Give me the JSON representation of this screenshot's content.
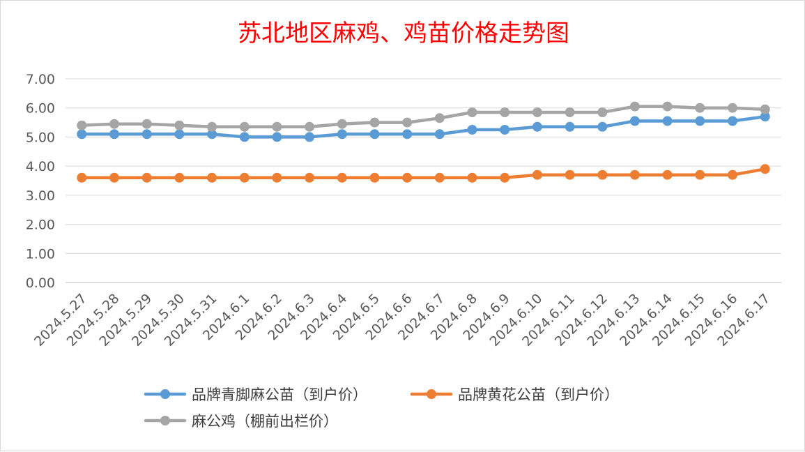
{
  "chart_data": {
    "type": "line",
    "title": "苏北地区麻鸡、鸡苗价格走势图",
    "xlabel": "",
    "ylabel": "",
    "ylim": [
      0,
      7
    ],
    "y_ticks": [
      "0.00",
      "1.00",
      "2.00",
      "3.00",
      "4.00",
      "5.00",
      "6.00",
      "7.00"
    ],
    "grid": true,
    "legend_position": "bottom",
    "categories": [
      "2024.5.27",
      "2024.5.28",
      "2024.5.29",
      "2024.5.30",
      "2024.5.31",
      "2024.6.1",
      "2024.6.2",
      "2024.6.3",
      "2024.6.4",
      "2024.6.5",
      "2024.6.6",
      "2024.6.7",
      "2024.6.8",
      "2024.6.9",
      "2024.6.10",
      "2024.6.11",
      "2024.6.12",
      "2024.6.13",
      "2024.6.14",
      "2024.6.15",
      "2024.6.16",
      "2024.6.17"
    ],
    "series": [
      {
        "name": "品牌青脚麻公苗（到户价）",
        "color": "#5b9bd5",
        "values": [
          5.1,
          5.1,
          5.1,
          5.1,
          5.1,
          5.0,
          5.0,
          5.0,
          5.1,
          5.1,
          5.1,
          5.1,
          5.25,
          5.25,
          5.35,
          5.35,
          5.35,
          5.55,
          5.55,
          5.55,
          5.55,
          5.7
        ]
      },
      {
        "name": "品牌黄花公苗（到户价）",
        "color": "#ed7d31",
        "values": [
          3.6,
          3.6,
          3.6,
          3.6,
          3.6,
          3.6,
          3.6,
          3.6,
          3.6,
          3.6,
          3.6,
          3.6,
          3.6,
          3.6,
          3.7,
          3.7,
          3.7,
          3.7,
          3.7,
          3.7,
          3.7,
          3.9
        ]
      },
      {
        "name": "麻公鸡（棚前出栏价）",
        "color": "#a5a5a5",
        "values": [
          5.4,
          5.45,
          5.45,
          5.4,
          5.35,
          5.35,
          5.35,
          5.35,
          5.45,
          5.5,
          5.5,
          5.65,
          5.85,
          5.85,
          5.85,
          5.85,
          5.85,
          6.05,
          6.05,
          6.0,
          6.0,
          5.95
        ]
      }
    ]
  }
}
